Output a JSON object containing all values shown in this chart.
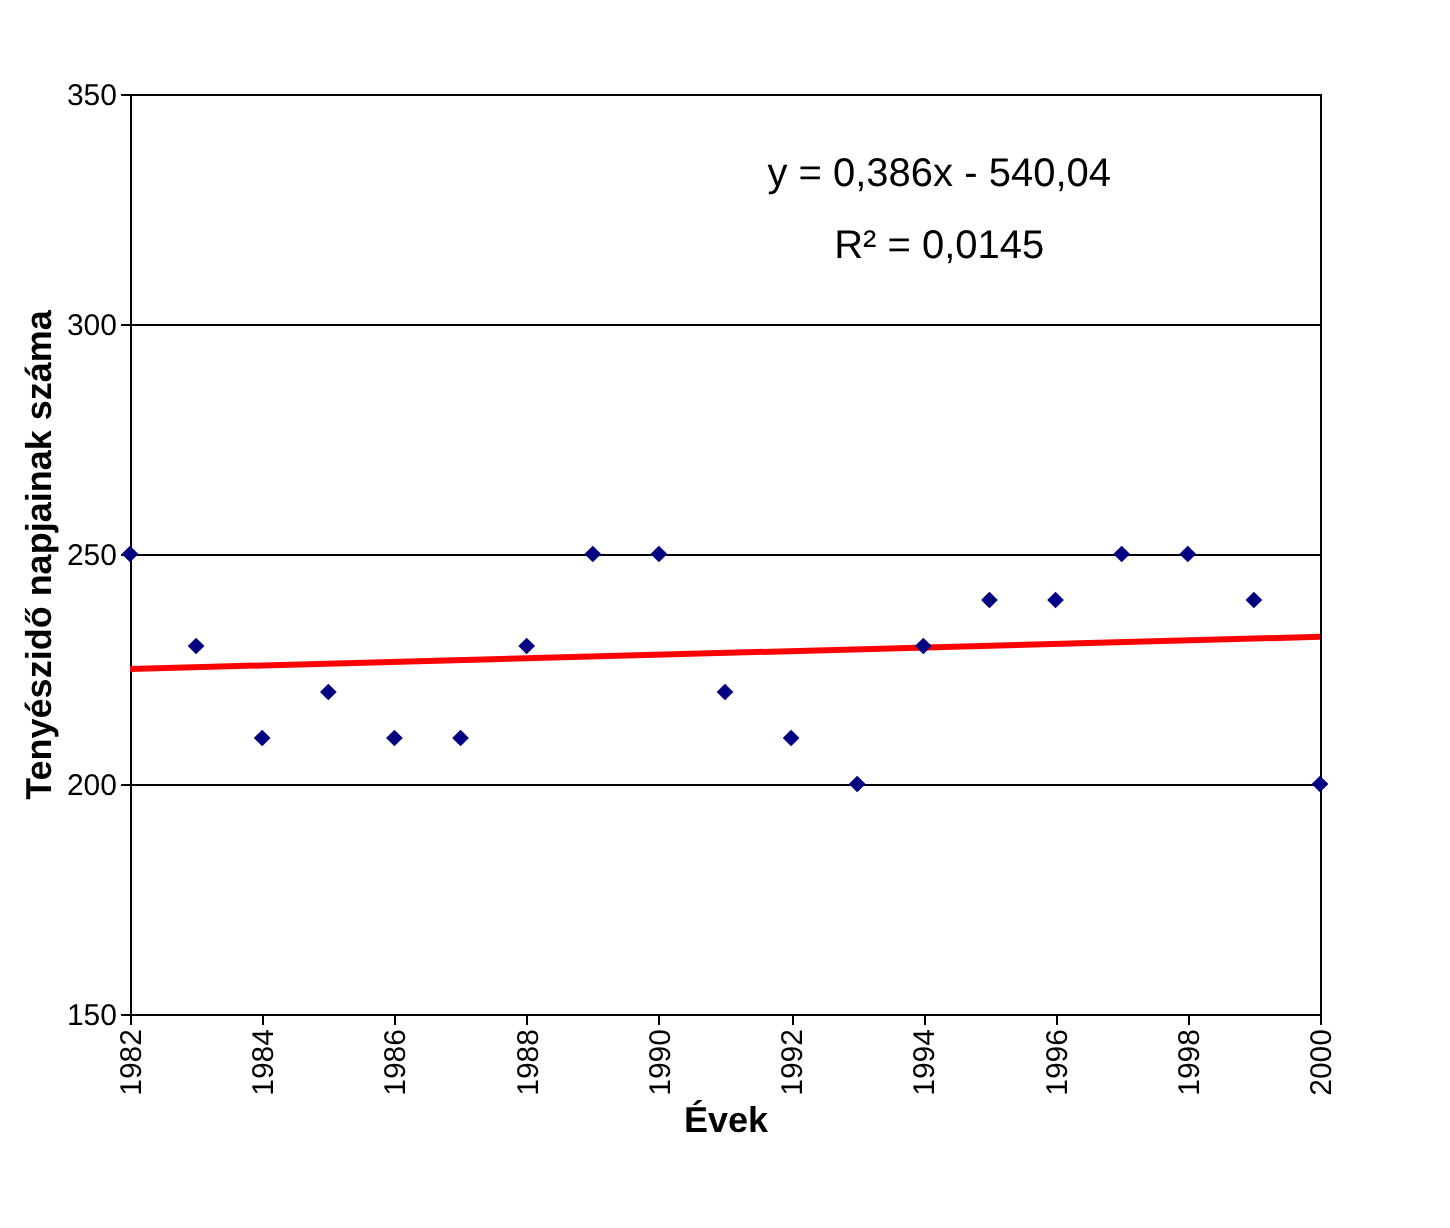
{
  "chart_data": {
    "type": "scatter",
    "xlabel": "Évek",
    "ylabel": "Tenyészidő napjainak száma",
    "x": [
      1982,
      1983,
      1984,
      1985,
      1986,
      1987,
      1988,
      1989,
      1990,
      1991,
      1992,
      1993,
      1994,
      1995,
      1996,
      1997,
      1998,
      1999,
      2000
    ],
    "series": [
      {
        "color": "#000080",
        "marker": "diamond",
        "values": [
          250,
          230,
          210,
          220,
          210,
          210,
          230,
          250,
          250,
          220,
          210,
          200,
          230,
          240,
          240,
          250,
          250,
          240,
          200
        ]
      },
      {
        "type": "line",
        "color": "#ff0000",
        "marker": "none",
        "x": [
          1982,
          2000
        ],
        "values": [
          225.0,
          232.0
        ]
      }
    ],
    "annotations": [
      "y = 0,386x - 540,04",
      "R² = 0,0145"
    ],
    "xlim": [
      1982,
      2000
    ],
    "xticks": [
      1982,
      1984,
      1986,
      1988,
      1990,
      1992,
      1994,
      1996,
      1998,
      2000
    ],
    "ylim": [
      150,
      350
    ],
    "yticks": [
      150,
      200,
      250,
      300,
      350
    ],
    "grid": "y"
  }
}
